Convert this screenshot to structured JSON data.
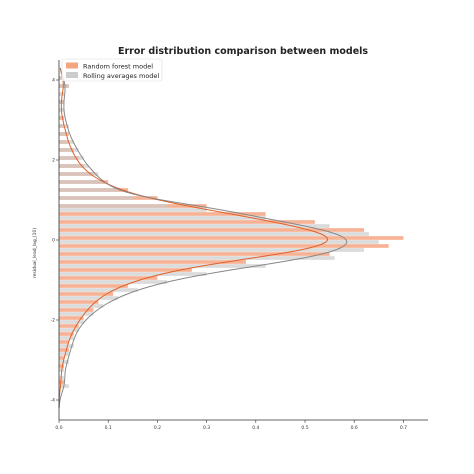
{
  "chart_data": {
    "type": "bar",
    "orientation": "horizontal",
    "title": "Error distribution comparison between models",
    "xlabel": "",
    "ylabel": "residual_lead_lag_(10)",
    "xlim": [
      0,
      0.75
    ],
    "ylim": [
      -4.5,
      4.5
    ],
    "xticks": [
      "0.0",
      "0.1",
      "0.2",
      "0.3",
      "0.4",
      "0.5",
      "0.6",
      "0.7"
    ],
    "yticks": [
      "-4",
      "-2",
      "0",
      "2",
      "4"
    ],
    "grid": false,
    "legend_position": "top-left",
    "bin_width": 0.1,
    "series": [
      {
        "name": "Random forest model",
        "color": "#f4a582",
        "kde_color": "#e0612a",
        "y": [
          -3.55,
          -3.35,
          -3.15,
          -2.95,
          -2.75,
          -2.55,
          -2.35,
          -2.15,
          -1.95,
          -1.75,
          -1.55,
          -1.35,
          -1.15,
          -0.95,
          -0.75,
          -0.55,
          -0.35,
          -0.15,
          0.05,
          0.25,
          0.45,
          0.65,
          0.85,
          1.05,
          1.25,
          1.45,
          1.65,
          1.85,
          2.05,
          2.25,
          2.45,
          2.65,
          2.85,
          3.05,
          3.25,
          3.45,
          3.65,
          3.85,
          4.05
        ],
        "values": [
          0.01,
          0.0,
          0.01,
          0.01,
          0.02,
          0.02,
          0.03,
          0.04,
          0.05,
          0.07,
          0.08,
          0.11,
          0.14,
          0.2,
          0.27,
          0.38,
          0.55,
          0.67,
          0.7,
          0.62,
          0.52,
          0.42,
          0.3,
          0.2,
          0.14,
          0.1,
          0.07,
          0.05,
          0.04,
          0.03,
          0.02,
          0.02,
          0.01,
          0.01,
          0.0,
          0.01,
          0.0,
          0.02,
          0.01
        ]
      },
      {
        "name": "Rolling averages model",
        "color": "#cccccc",
        "kde_color": "#888888",
        "y": [
          -3.65,
          -3.45,
          -3.25,
          -3.05,
          -2.85,
          -2.65,
          -2.45,
          -2.25,
          -2.05,
          -1.85,
          -1.65,
          -1.45,
          -1.25,
          -1.05,
          -0.85,
          -0.65,
          -0.45,
          -0.25,
          -0.05,
          0.15,
          0.35,
          0.55,
          0.75,
          0.85,
          1.05,
          1.25,
          1.45,
          1.65,
          1.85,
          2.05,
          2.25,
          2.45,
          2.65,
          2.85,
          3.05,
          3.25,
          3.45,
          3.65,
          3.85,
          4.05
        ],
        "values": [
          0.02,
          0.01,
          0.01,
          0.02,
          0.02,
          0.03,
          0.03,
          0.04,
          0.05,
          0.07,
          0.09,
          0.12,
          0.16,
          0.22,
          0.3,
          0.42,
          0.56,
          0.62,
          0.65,
          0.63,
          0.55,
          0.42,
          0.3,
          0.22,
          0.15,
          0.12,
          0.09,
          0.08,
          0.06,
          0.05,
          0.04,
          0.03,
          0.02,
          0.02,
          0.01,
          0.01,
          0.01,
          0.01,
          0.02,
          0.01
        ]
      }
    ]
  }
}
